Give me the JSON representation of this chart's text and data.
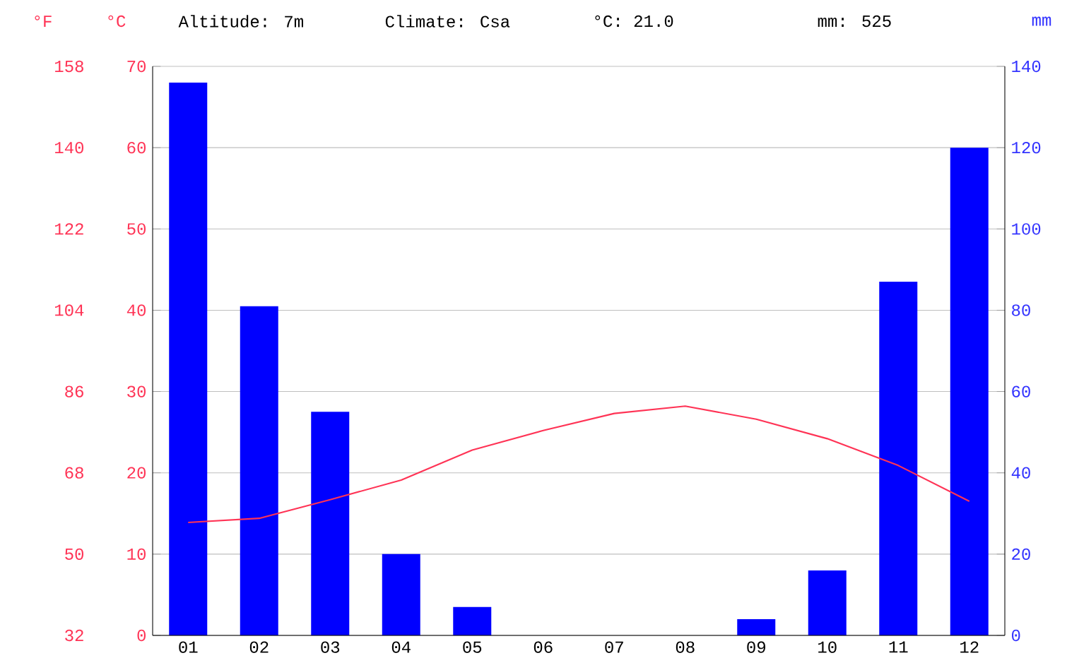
{
  "chart_data": {
    "type": "bar",
    "annotations": [
      "Altitude: 7m",
      "Climate: Csa",
      "°C: 21.0",
      "mm: 525"
    ],
    "categories": [
      "01",
      "02",
      "03",
      "04",
      "05",
      "06",
      "07",
      "08",
      "09",
      "10",
      "11",
      "12"
    ],
    "series": [
      {
        "axis": "y2",
        "color": "#0000ff",
        "values": [
          136,
          81,
          55,
          20,
          7,
          0,
          0,
          0,
          4,
          16,
          87,
          120
        ]
      },
      {
        "type": "line",
        "color": "#ff3355",
        "values": [
          13.9,
          14.4,
          16.7,
          19.1,
          22.8,
          25.2,
          27.3,
          28.2,
          26.6,
          24.2,
          20.9,
          16.5
        ]
      }
    ],
    "ylabel": "°C",
    "y2label": "mm",
    "y3label": "°F",
    "ylim": [
      0,
      70
    ],
    "yticks": [
      0,
      10,
      20,
      30,
      40,
      50,
      60,
      70
    ],
    "y2lim": [
      0,
      140
    ],
    "y2ticks": [
      0,
      20,
      40,
      60,
      80,
      100,
      120,
      140
    ],
    "y3lim": [
      32,
      158
    ],
    "y3ticks": [
      32,
      50,
      68,
      86,
      104,
      122,
      140,
      158
    ],
    "grid": "y",
    "line_style": "solid",
    "marker": "none"
  }
}
